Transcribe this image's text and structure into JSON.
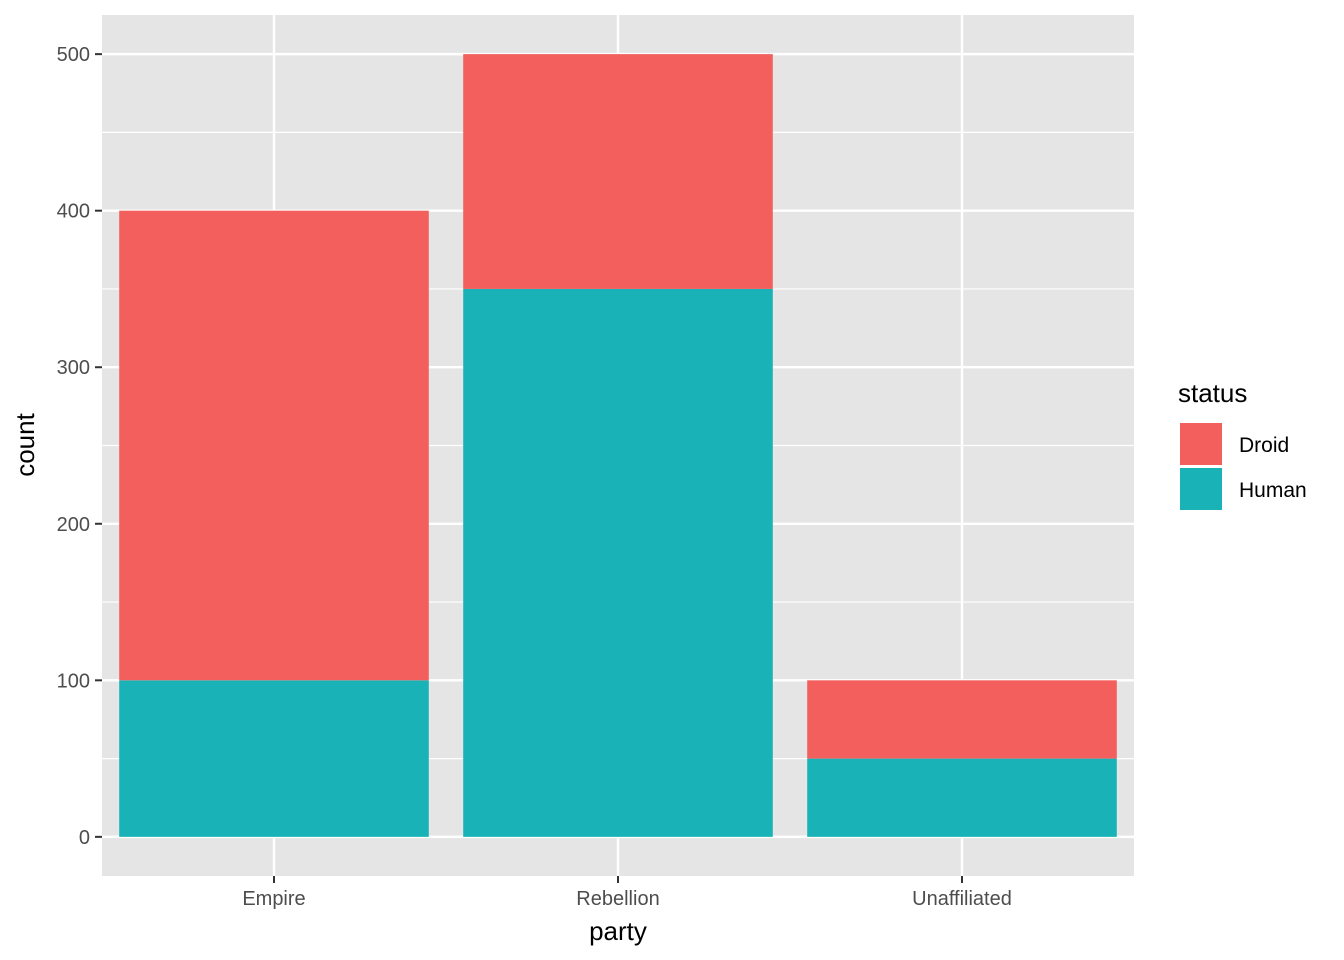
{
  "chart_data": {
    "type": "bar",
    "stacked": true,
    "categories": [
      "Empire",
      "Rebellion",
      "Unaffiliated"
    ],
    "series": [
      {
        "name": "Droid",
        "values": [
          300,
          150,
          50
        ],
        "color": "#F25F5C"
      },
      {
        "name": "Human",
        "values": [
          100,
          350,
          50
        ],
        "color": "#19B3B7"
      }
    ],
    "stack_order_bottom_to_top": [
      "Human",
      "Droid"
    ],
    "title": "",
    "xlabel": "party",
    "ylabel": "count",
    "ylim": [
      -25,
      525
    ],
    "yticks": [
      0,
      100,
      200,
      300,
      400,
      500
    ],
    "ytick_labels": [
      "0",
      "100",
      "200",
      "300",
      "400",
      "500"
    ],
    "grid": true,
    "legend": {
      "title": "status",
      "placement": "right",
      "entries": [
        "Droid",
        "Human"
      ]
    },
    "colors": {
      "panel_background": "#E5E5E5",
      "gridline": "#FFFFFF",
      "tick_text": "#4D4D4D",
      "tick_mark": "#333333"
    }
  }
}
